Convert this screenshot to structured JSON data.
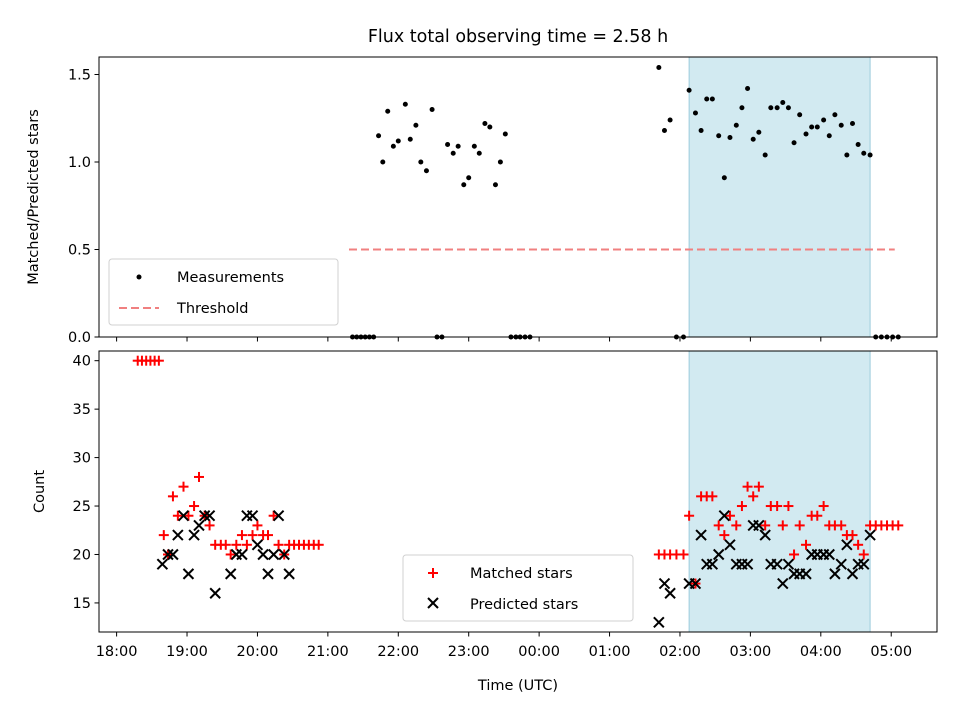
{
  "chart_data": [
    {
      "type": "scatter",
      "title": "Flux total observing time = 2.58 h",
      "xlabel": "",
      "ylabel": "Matched/Predicted stars",
      "ylim": [
        0,
        1.6
      ],
      "yticks": [
        "0.0",
        "0.5",
        "1.0",
        "1.5"
      ],
      "shaded_region": {
        "x_start_h": 2.13,
        "x_end_h": 4.7,
        "color": "#add8e6"
      },
      "threshold": {
        "name": "Threshold",
        "y": 0.5,
        "x_start_h": -2.7,
        "x_end_h": 5.05,
        "color": "#f08080"
      },
      "legend": {
        "placement": "lower-left",
        "entries": [
          "Measurements",
          "Threshold"
        ]
      },
      "series": [
        {
          "name": "Measurements",
          "color": "#000000",
          "points": [
            [
              -2.65,
              0
            ],
            [
              -2.59,
              0
            ],
            [
              -2.53,
              0
            ],
            [
              -2.47,
              0
            ],
            [
              -2.41,
              0
            ],
            [
              -2.35,
              0
            ],
            [
              -2.28,
              1.15
            ],
            [
              -2.22,
              1.0
            ],
            [
              -2.15,
              1.29
            ],
            [
              -2.07,
              1.09
            ],
            [
              -2.0,
              1.12
            ],
            [
              -1.9,
              1.33
            ],
            [
              -1.83,
              1.13
            ],
            [
              -1.75,
              1.21
            ],
            [
              -1.68,
              1.0
            ],
            [
              -1.6,
              0.95
            ],
            [
              -1.52,
              1.3
            ],
            [
              -1.45,
              0
            ],
            [
              -1.38,
              0
            ],
            [
              -1.3,
              1.1
            ],
            [
              -1.22,
              1.05
            ],
            [
              -1.15,
              1.09
            ],
            [
              -1.07,
              0.87
            ],
            [
              -1.0,
              0.91
            ],
            [
              -0.92,
              1.09
            ],
            [
              -0.85,
              1.05
            ],
            [
              -0.77,
              1.22
            ],
            [
              -0.7,
              1.2
            ],
            [
              -0.62,
              0.87
            ],
            [
              -0.55,
              1.0
            ],
            [
              -0.48,
              1.16
            ],
            [
              -0.4,
              0
            ],
            [
              -0.33,
              0
            ],
            [
              -0.27,
              0
            ],
            [
              -0.2,
              0
            ],
            [
              -0.13,
              0
            ],
            [
              1.7,
              1.54
            ],
            [
              1.78,
              1.18
            ],
            [
              1.86,
              1.24
            ],
            [
              1.95,
              0
            ],
            [
              2.05,
              0
            ],
            [
              2.13,
              1.41
            ],
            [
              2.22,
              1.28
            ],
            [
              2.3,
              1.18
            ],
            [
              2.38,
              1.36
            ],
            [
              2.46,
              1.36
            ],
            [
              2.55,
              1.15
            ],
            [
              2.63,
              0.91
            ],
            [
              2.71,
              1.14
            ],
            [
              2.8,
              1.21
            ],
            [
              2.88,
              1.31
            ],
            [
              2.96,
              1.42
            ],
            [
              3.04,
              1.13
            ],
            [
              3.12,
              1.17
            ],
            [
              3.21,
              1.04
            ],
            [
              3.29,
              1.31
            ],
            [
              3.38,
              1.31
            ],
            [
              3.46,
              1.34
            ],
            [
              3.54,
              1.31
            ],
            [
              3.62,
              1.11
            ],
            [
              3.7,
              1.27
            ],
            [
              3.79,
              1.16
            ],
            [
              3.87,
              1.2
            ],
            [
              3.95,
              1.2
            ],
            [
              4.04,
              1.24
            ],
            [
              4.12,
              1.15
            ],
            [
              4.2,
              1.27
            ],
            [
              4.29,
              1.21
            ],
            [
              4.37,
              1.04
            ],
            [
              4.45,
              1.22
            ],
            [
              4.53,
              1.1
            ],
            [
              4.61,
              1.05
            ],
            [
              4.7,
              1.04
            ],
            [
              4.78,
              0
            ],
            [
              4.86,
              0
            ],
            [
              4.94,
              0
            ],
            [
              5.02,
              0
            ],
            [
              5.1,
              0
            ]
          ]
        }
      ]
    },
    {
      "type": "scatter",
      "xlabel": "Time (UTC)",
      "ylabel": "Count",
      "ylim": [
        12,
        41
      ],
      "yticks": [
        "15",
        "20",
        "25",
        "30",
        "35",
        "40"
      ],
      "xlim_h": [
        -6.25,
        5.65
      ],
      "xticks": [
        "18:00",
        "19:00",
        "20:00",
        "21:00",
        "22:00",
        "23:00",
        "00:00",
        "01:00",
        "02:00",
        "03:00",
        "04:00",
        "05:00"
      ],
      "shaded_region": {
        "x_start_h": 2.13,
        "x_end_h": 4.7,
        "color": "#add8e6"
      },
      "legend": {
        "placement": "lower-center",
        "entries": [
          "Matched stars",
          "Predicted stars"
        ]
      },
      "series": [
        {
          "name": "Matched stars",
          "marker": "+",
          "color": "#ff0000",
          "points": [
            [
              -5.7,
              40
            ],
            [
              -5.64,
              40
            ],
            [
              -5.58,
              40
            ],
            [
              -5.52,
              40
            ],
            [
              -5.46,
              40
            ],
            [
              -5.4,
              40
            ],
            [
              -5.33,
              22
            ],
            [
              -5.27,
              20
            ],
            [
              -5.2,
              26
            ],
            [
              -5.13,
              24
            ],
            [
              -5.05,
              27
            ],
            [
              -4.98,
              24
            ],
            [
              -4.9,
              25
            ],
            [
              -4.83,
              28
            ],
            [
              -4.75,
              24
            ],
            [
              -4.68,
              23
            ],
            [
              -4.6,
              21
            ],
            [
              -4.52,
              21
            ],
            [
              -4.45,
              21
            ],
            [
              -4.38,
              20
            ],
            [
              -4.3,
              21
            ],
            [
              -4.22,
              22
            ],
            [
              -4.15,
              21
            ],
            [
              -4.07,
              22
            ],
            [
              -4.0,
              23
            ],
            [
              -3.92,
              22
            ],
            [
              -3.85,
              22
            ],
            [
              -3.77,
              24
            ],
            [
              -3.7,
              21
            ],
            [
              -3.62,
              20
            ],
            [
              -3.55,
              21
            ],
            [
              -3.48,
              21
            ],
            [
              -3.41,
              21
            ],
            [
              -3.34,
              21
            ],
            [
              -3.27,
              21
            ],
            [
              -3.2,
              21
            ],
            [
              -3.13,
              21
            ],
            [
              1.7,
              20
            ],
            [
              1.78,
              20
            ],
            [
              1.86,
              20
            ],
            [
              1.95,
              20
            ],
            [
              2.05,
              20
            ],
            [
              2.13,
              24
            ],
            [
              2.22,
              17
            ],
            [
              2.3,
              26
            ],
            [
              2.38,
              26
            ],
            [
              2.46,
              26
            ],
            [
              2.55,
              23
            ],
            [
              2.63,
              22
            ],
            [
              2.71,
              24
            ],
            [
              2.8,
              23
            ],
            [
              2.88,
              25
            ],
            [
              2.96,
              27
            ],
            [
              3.04,
              26
            ],
            [
              3.12,
              27
            ],
            [
              3.21,
              23
            ],
            [
              3.29,
              25
            ],
            [
              3.38,
              25
            ],
            [
              3.46,
              23
            ],
            [
              3.54,
              25
            ],
            [
              3.62,
              20
            ],
            [
              3.7,
              23
            ],
            [
              3.79,
              21
            ],
            [
              3.87,
              24
            ],
            [
              3.95,
              24
            ],
            [
              4.04,
              25
            ],
            [
              4.12,
              23
            ],
            [
              4.2,
              23
            ],
            [
              4.29,
              23
            ],
            [
              4.37,
              22
            ],
            [
              4.45,
              22
            ],
            [
              4.53,
              21
            ],
            [
              4.61,
              20
            ],
            [
              4.7,
              23
            ],
            [
              4.78,
              23
            ],
            [
              4.86,
              23
            ],
            [
              4.94,
              23
            ],
            [
              5.02,
              23
            ],
            [
              5.1,
              23
            ]
          ]
        },
        {
          "name": "Predicted stars",
          "marker": "x",
          "color": "#000000",
          "points": [
            [
              -5.35,
              19
            ],
            [
              -5.27,
              20
            ],
            [
              -5.2,
              20
            ],
            [
              -5.13,
              22
            ],
            [
              -5.05,
              24
            ],
            [
              -4.98,
              18
            ],
            [
              -4.9,
              22
            ],
            [
              -4.83,
              23
            ],
            [
              -4.75,
              24
            ],
            [
              -4.68,
              24
            ],
            [
              -4.6,
              16
            ],
            [
              -4.38,
              18
            ],
            [
              -4.3,
              20
            ],
            [
              -4.22,
              20
            ],
            [
              -4.15,
              24
            ],
            [
              -4.07,
              24
            ],
            [
              -4.0,
              21
            ],
            [
              -3.92,
              20
            ],
            [
              -3.85,
              18
            ],
            [
              -3.77,
              20
            ],
            [
              -3.7,
              24
            ],
            [
              -3.62,
              20
            ],
            [
              -3.55,
              18
            ],
            [
              1.7,
              13
            ],
            [
              1.78,
              17
            ],
            [
              1.86,
              16
            ],
            [
              2.13,
              17
            ],
            [
              2.22,
              17
            ],
            [
              2.3,
              22
            ],
            [
              2.38,
              19
            ],
            [
              2.46,
              19
            ],
            [
              2.55,
              20
            ],
            [
              2.63,
              24
            ],
            [
              2.71,
              21
            ],
            [
              2.8,
              19
            ],
            [
              2.88,
              19
            ],
            [
              2.96,
              19
            ],
            [
              3.04,
              23
            ],
            [
              3.12,
              23
            ],
            [
              3.21,
              22
            ],
            [
              3.29,
              19
            ],
            [
              3.38,
              19
            ],
            [
              3.46,
              17
            ],
            [
              3.54,
              19
            ],
            [
              3.62,
              18
            ],
            [
              3.7,
              18
            ],
            [
              3.79,
              18
            ],
            [
              3.87,
              20
            ],
            [
              3.95,
              20
            ],
            [
              4.04,
              20
            ],
            [
              4.12,
              20
            ],
            [
              4.2,
              18
            ],
            [
              4.29,
              19
            ],
            [
              4.37,
              21
            ],
            [
              4.45,
              18
            ],
            [
              4.53,
              19
            ],
            [
              4.61,
              19
            ],
            [
              4.7,
              22
            ]
          ]
        }
      ]
    }
  ]
}
